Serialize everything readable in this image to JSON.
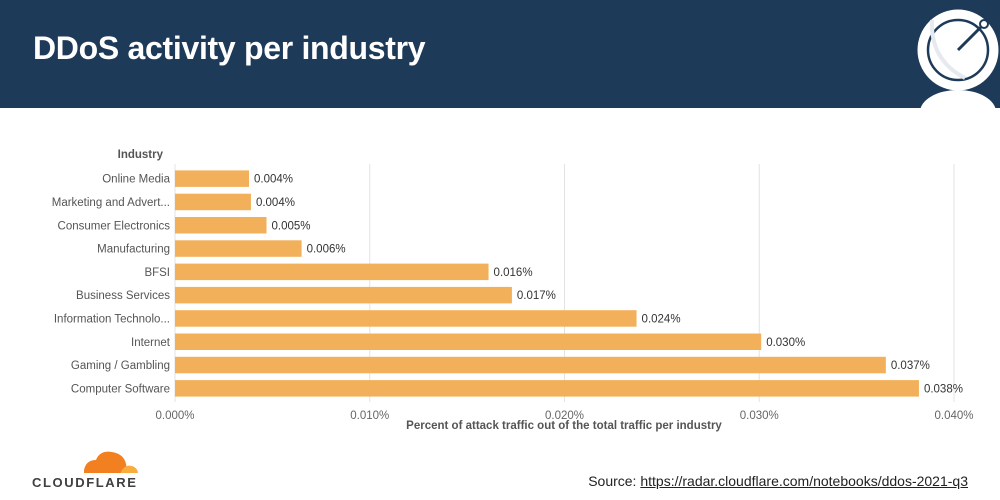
{
  "header": {
    "title": "DDoS activity per industry"
  },
  "branding": {
    "logo_text": "CLOUDFLARE"
  },
  "source": {
    "label": "Source:",
    "url": "https://radar.cloudflare.com/notebooks/ddos-2021-q3"
  },
  "colors": {
    "header_bg": "#1d3a58",
    "bar": "#f3b05a",
    "logo_orange": "#f38020",
    "logo_light": "#faad3f"
  },
  "chart_data": {
    "type": "bar",
    "orientation": "horizontal",
    "title": "",
    "ylabel": "Industry",
    "xlabel": "Percent of attack traffic out of the total traffic per industry",
    "categories": [
      "Online Media",
      "Marketing and Advert...",
      "Consumer Electronics",
      "Manufacturing",
      "BFSI",
      "Business Services",
      "Information Technolo...",
      "Internet",
      "Gaming / Gambling",
      "Computer Software"
    ],
    "values": [
      0.0038,
      0.0039,
      0.0047,
      0.0065,
      0.0161,
      0.0173,
      0.0237,
      0.0301,
      0.0365,
      0.0382
    ],
    "value_labels": [
      "0.004%",
      "0.004%",
      "0.005%",
      "0.006%",
      "0.016%",
      "0.017%",
      "0.024%",
      "0.030%",
      "0.037%",
      "0.038%"
    ],
    "xlim": [
      0,
      0.04
    ],
    "xticks": [
      0,
      0.01,
      0.02,
      0.03,
      0.04
    ],
    "xtick_labels": [
      "0.000%",
      "0.010%",
      "0.020%",
      "0.030%",
      "0.040%"
    ],
    "grid": true,
    "legend": "none"
  }
}
